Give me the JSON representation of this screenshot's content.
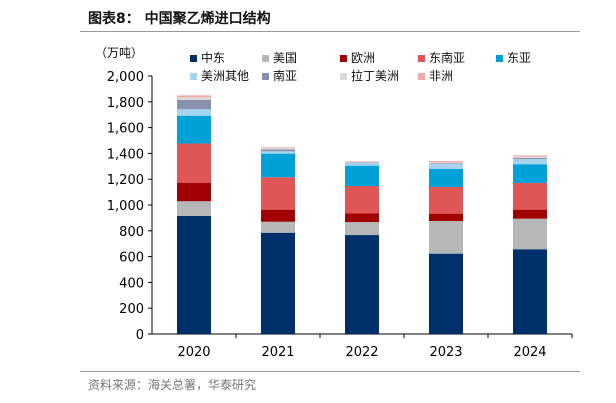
{
  "title": "图表8：  中国聚乙烯进口结构",
  "source": "资料来源：海关总署，华泰研究",
  "chart_data": {
    "type": "bar",
    "stacked": true,
    "title": "中国聚乙烯进口结构",
    "ylabel": "（万吨）",
    "xlabel": "",
    "ylim": [
      0,
      2000
    ],
    "yticks": [
      "0",
      "200",
      "400",
      "600",
      "800",
      "1,000",
      "1,200",
      "1,400",
      "1,600",
      "1,800",
      "2,000"
    ],
    "categories": [
      "2020",
      "2021",
      "2022",
      "2023",
      "2024"
    ],
    "legend_position": "top",
    "series": [
      {
        "name": "中东",
        "color": "#003069",
        "values": [
          915,
          785,
          767,
          623,
          657
        ]
      },
      {
        "name": "美国",
        "color": "#b7b7b7",
        "values": [
          114,
          85,
          101,
          253,
          237
        ]
      },
      {
        "name": "欧洲",
        "color": "#a00000",
        "values": [
          144,
          94,
          68,
          57,
          70
        ]
      },
      {
        "name": "东南亚",
        "color": "#e05555",
        "values": [
          304,
          251,
          211,
          207,
          207
        ]
      },
      {
        "name": "东亚",
        "color": "#00a0d8",
        "values": [
          215,
          183,
          158,
          139,
          145
        ]
      },
      {
        "name": "美洲其他",
        "color": "#a6d4ec",
        "values": [
          50,
          18,
          23,
          41,
          41
        ]
      },
      {
        "name": "南亚",
        "color": "#8a8fae",
        "values": [
          72,
          15,
          4,
          5,
          8
        ]
      },
      {
        "name": "拉丁美洲",
        "color": "#d9d9d9",
        "values": [
          21,
          16,
          3,
          7,
          10
        ]
      },
      {
        "name": "非洲",
        "color": "#f4a8a8",
        "values": [
          15,
          3,
          4,
          9,
          10
        ]
      }
    ]
  }
}
